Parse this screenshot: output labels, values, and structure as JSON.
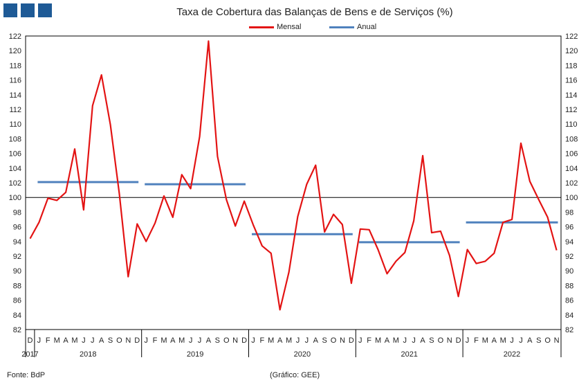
{
  "brand": {
    "color": "#1e5a96"
  },
  "chart_data": {
    "type": "line",
    "title": "Taxa de Cobertura das Balanças de Bens e de Serviços (%)",
    "ylim": [
      82,
      122
    ],
    "yticks": [
      82,
      84,
      86,
      88,
      90,
      92,
      94,
      96,
      98,
      100,
      102,
      104,
      106,
      108,
      110,
      112,
      114,
      116,
      118,
      120,
      122
    ],
    "reference_line": 100,
    "x_months": [
      "D",
      "J",
      "F",
      "M",
      "A",
      "M",
      "J",
      "J",
      "A",
      "S",
      "O",
      "N",
      "D",
      "J",
      "F",
      "M",
      "A",
      "M",
      "J",
      "J",
      "A",
      "S",
      "O",
      "N",
      "D",
      "J",
      "F",
      "M",
      "A",
      "M",
      "J",
      "J",
      "A",
      "S",
      "O",
      "N",
      "D",
      "J",
      "F",
      "M",
      "A",
      "M",
      "J",
      "J",
      "A",
      "S",
      "O",
      "N",
      "D",
      "J",
      "F",
      "M",
      "A",
      "M",
      "J",
      "J",
      "A",
      "S",
      "O",
      "N"
    ],
    "years": [
      {
        "label": "2017",
        "start": 0,
        "end": 0
      },
      {
        "label": "2018",
        "start": 1,
        "end": 12
      },
      {
        "label": "2019",
        "start": 13,
        "end": 24
      },
      {
        "label": "2020",
        "start": 25,
        "end": 36
      },
      {
        "label": "2021",
        "start": 37,
        "end": 48
      },
      {
        "label": "2022",
        "start": 49,
        "end": 59
      }
    ],
    "series": [
      {
        "name": "Mensal",
        "color": "#e31313",
        "values": [
          94.4,
          96.6,
          99.9,
          99.6,
          100.7,
          106.6,
          98.3,
          112.5,
          116.7,
          109.9,
          100.5,
          89.2,
          96.4,
          94.0,
          96.5,
          100.2,
          97.3,
          103.1,
          101.2,
          108.3,
          121.3,
          105.6,
          99.7,
          96.1,
          99.5,
          96.3,
          93.4,
          92.4,
          84.7,
          89.8,
          97.4,
          101.8,
          104.4,
          95.3,
          97.7,
          96.3,
          88.3,
          95.7,
          95.6,
          92.9,
          89.6,
          91.3,
          92.5,
          96.8,
          105.7,
          95.2,
          95.4,
          92.1,
          86.5,
          92.9,
          91.0,
          91.3,
          92.4,
          96.6,
          97.0,
          107.4,
          102.2,
          99.7,
          97.3,
          92.8
        ]
      },
      {
        "name": "Anual",
        "color": "#4f81bd",
        "segments": [
          {
            "start": 1,
            "end": 12,
            "value": 102.1
          },
          {
            "start": 13,
            "end": 24,
            "value": 101.8
          },
          {
            "start": 25,
            "end": 36,
            "value": 95.0
          },
          {
            "start": 37,
            "end": 48,
            "value": 93.9
          },
          {
            "start": 49,
            "end": 59,
            "value": 96.6
          }
        ]
      }
    ]
  },
  "footer": {
    "source": "Fonte: BdP",
    "credit": "(Gráfico: GEE)"
  }
}
